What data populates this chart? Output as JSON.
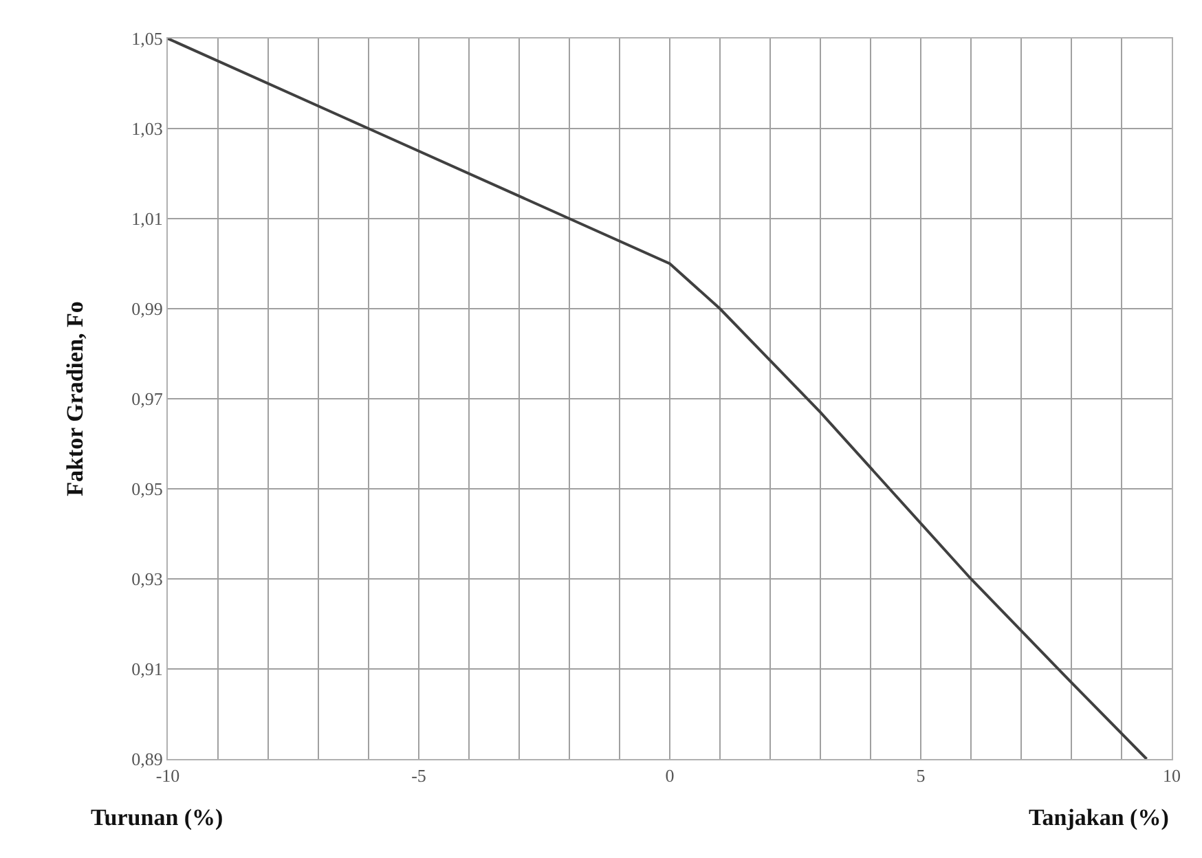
{
  "chart_data": {
    "type": "line",
    "ylabel": "Faktor Gradien, Fo",
    "annotations": [
      "Turunan (%)",
      "Tanjakan (%)"
    ],
    "x": [
      -10,
      -6,
      -2,
      0,
      1,
      3,
      6,
      8,
      9.5
    ],
    "series": [
      {
        "color": "#404040",
        "values": [
          1.05,
          1.03,
          1.01,
          1.0,
          0.99,
          0.967,
          0.93,
          0.907,
          0.89
        ]
      }
    ],
    "xlim": [
      -10,
      10
    ],
    "xticks": [
      -10,
      {
        "value": -9,
        "label": null
      },
      {
        "value": -8,
        "label": null
      },
      {
        "value": -7,
        "label": null
      },
      {
        "value": -6,
        "label": null
      },
      -5,
      {
        "value": -4,
        "label": null
      },
      {
        "value": -3,
        "label": null
      },
      {
        "value": -2,
        "label": null
      },
      {
        "value": -1,
        "label": null
      },
      0,
      {
        "value": 1,
        "label": null
      },
      {
        "value": 2,
        "label": null
      },
      {
        "value": 3,
        "label": null
      },
      {
        "value": 4,
        "label": null
      },
      5,
      {
        "value": 6,
        "label": null
      },
      {
        "value": 7,
        "label": null
      },
      {
        "value": 8,
        "label": null
      },
      {
        "value": 9,
        "label": null
      },
      10
    ],
    "ylim": [
      0.89,
      1.05
    ],
    "yticks": [
      {
        "value": 0.89,
        "label": "0,89"
      },
      {
        "value": 0.91,
        "label": "0,91"
      },
      {
        "value": 0.93,
        "label": "0,93"
      },
      {
        "value": 0.95,
        "label": "0,95"
      },
      {
        "value": 0.97,
        "label": "0,97"
      },
      {
        "value": 0.99,
        "label": "0,99"
      },
      {
        "value": 1.01,
        "label": "1,01"
      },
      {
        "value": 1.03,
        "label": "1,03"
      },
      {
        "value": 1.05,
        "label": "1,05"
      }
    ],
    "grid": true,
    "marker": "none",
    "line_style": "solid"
  }
}
